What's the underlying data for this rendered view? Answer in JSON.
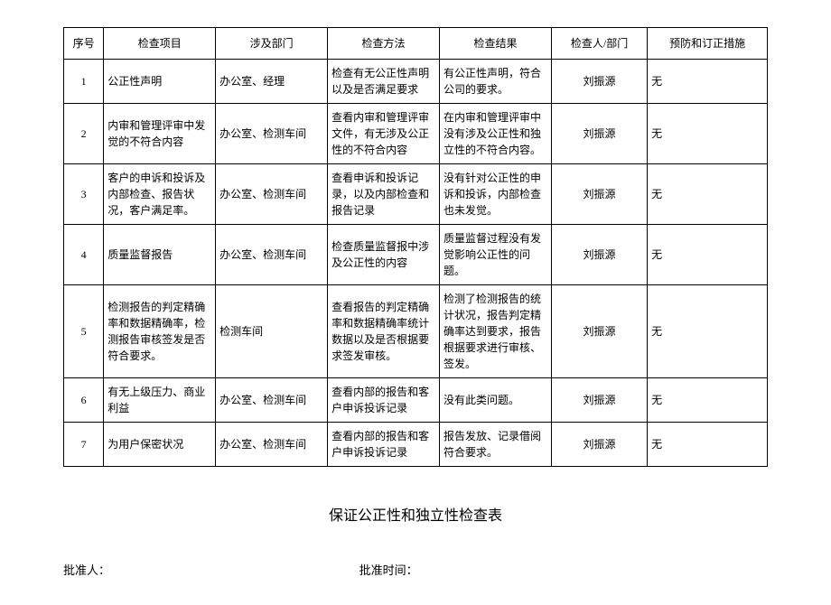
{
  "table": {
    "headers": {
      "seq": "序号",
      "item": "检查项目",
      "dept": "涉及部门",
      "method": "检查方法",
      "result": "检查结果",
      "inspector": "检查人/部门",
      "measure": "预防和订正措施"
    },
    "rows": [
      {
        "seq": "1",
        "item": "公正性声明",
        "dept": "办公室、经理",
        "method": "检查有无公正性声明以及是否满足要求",
        "result": "有公正性声明，符合公司的要求。",
        "inspector": "刘振源",
        "measure": "无"
      },
      {
        "seq": "2",
        "item": "内审和管理评审中发觉的不符合内容",
        "dept": "办公室、检测车间",
        "method": "查看内审和管理评审文件，有无涉及公正性的不符合内容",
        "result": "在内审和管理评审中没有涉及公正性和独立性的不符合内容。",
        "inspector": "刘振源",
        "measure": "无"
      },
      {
        "seq": "3",
        "item": "客户的申诉和投诉及内部检查、报告状况，客户满足率。",
        "dept": "办公室、检测车间",
        "method": "查看申诉和投诉记录，以及内部检查和报告记录",
        "result": "没有针对公正性的申诉和投诉，内部检查也未发觉。",
        "inspector": "刘振源",
        "measure": "无"
      },
      {
        "seq": "4",
        "item": "质量监督报告",
        "dept": "办公室、检测车间",
        "method": "检查质量监督报中涉及公正性的内容",
        "result": "质量监督过程没有发觉影响公正性的问题。",
        "inspector": "刘振源",
        "measure": "无"
      },
      {
        "seq": "5",
        "item": "检测报告的判定精确率和数据精确率，检测报告审核签发是否符合要求。",
        "dept": "检测车间",
        "method": "查看报告的判定精确率和数据精确率统计数据以及是否根据要求签发审核。",
        "result": "检测了检测报告的统计状况，报告判定精确率达到要求，报告根据要求进行审核、签发。",
        "inspector": "刘振源",
        "measure": "无"
      },
      {
        "seq": "6",
        "item": "有无上级压力、商业利益",
        "dept": "办公室、检测车间",
        "method": "查看内部的报告和客户申诉投诉记录",
        "result": "没有此类问题。",
        "inspector": "刘振源",
        "measure": "无"
      },
      {
        "seq": "7",
        "item": "为用户保密状况",
        "dept": "办公室、检测车间",
        "method": "查看内部的报告和客户申诉投诉记录",
        "result": "报告发放、记录借阅符合要求。",
        "inspector": "刘振源",
        "measure": "无"
      }
    ]
  },
  "title": "保证公正性和独立性检查表",
  "footer": {
    "approver": "批准人：",
    "approve_time": "批准时间："
  }
}
